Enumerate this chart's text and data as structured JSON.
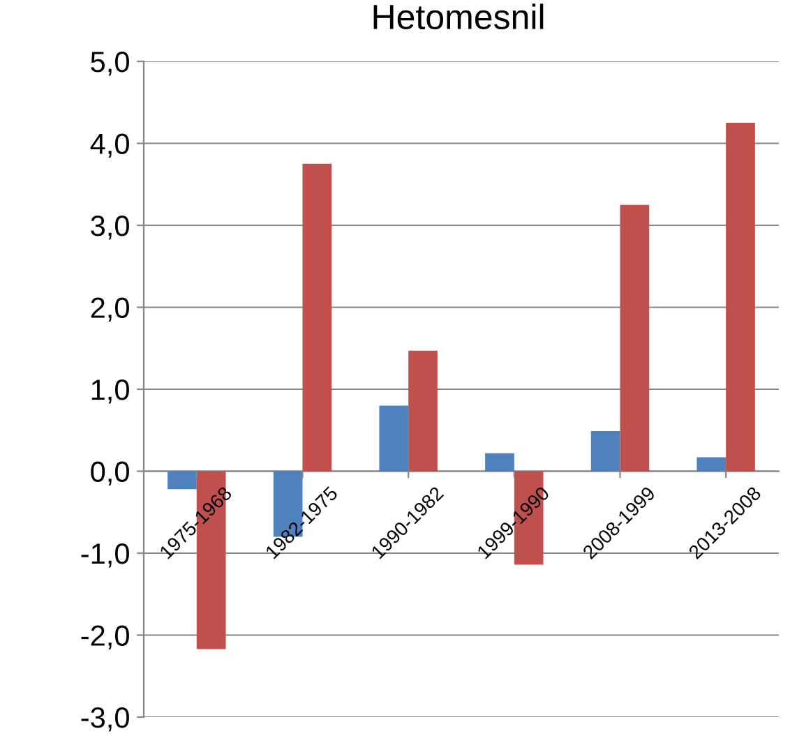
{
  "chart_data": {
    "type": "bar",
    "title": "Hetomesnil",
    "categories": [
      "1975-1968",
      "1982-1975",
      "1990-1982",
      "1999-1990",
      "2008-1999",
      "2013-2008"
    ],
    "series": [
      {
        "color": "#4f81bd",
        "values": [
          -0.22,
          -0.8,
          0.8,
          0.22,
          0.49,
          0.17
        ]
      },
      {
        "color": "#c0504d",
        "values": [
          -2.17,
          3.75,
          1.47,
          -1.14,
          3.25,
          4.25
        ]
      }
    ],
    "ylim": [
      -3,
      5
    ],
    "yticks": [
      {
        "value": -3,
        "label": "-3,0"
      },
      {
        "value": -2,
        "label": "-2,0"
      },
      {
        "value": -1,
        "label": "-1,0"
      },
      {
        "value": 0,
        "label": "0,0"
      },
      {
        "value": 1,
        "label": "1,0"
      },
      {
        "value": 2,
        "label": "2,0"
      },
      {
        "value": 3,
        "label": "3,0"
      },
      {
        "value": 4,
        "label": "4,0"
      },
      {
        "value": 5,
        "label": "5,0"
      }
    ],
    "grid": "y"
  }
}
